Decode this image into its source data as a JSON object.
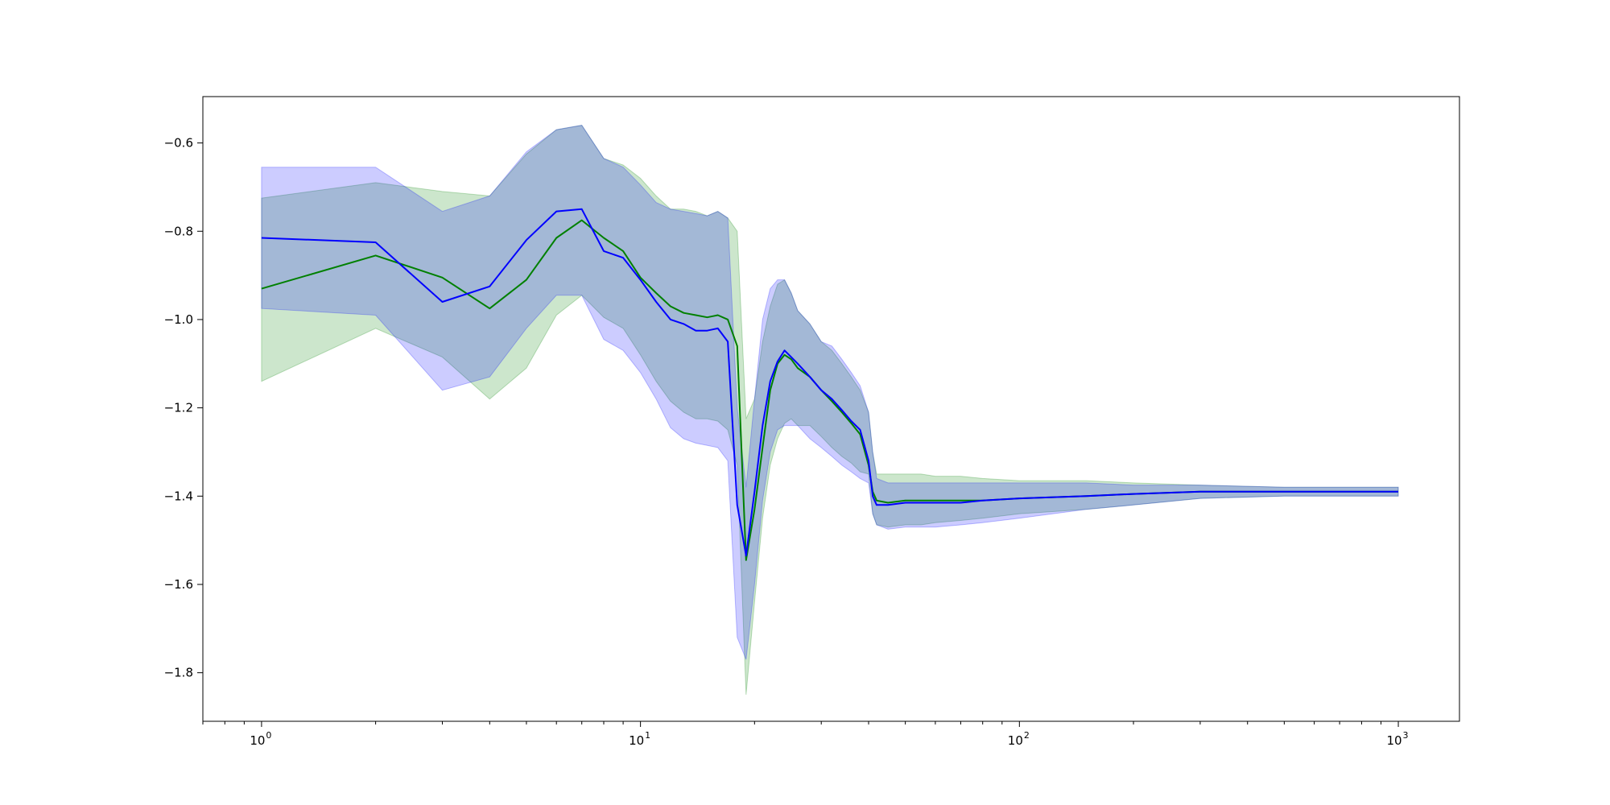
{
  "chart_data": {
    "type": "line",
    "title": "",
    "xlabel": "",
    "ylabel": "",
    "x_scale": "log",
    "xlim": [
      0.7,
      1450
    ],
    "ylim": [
      -1.91,
      -0.495
    ],
    "grid": false,
    "legend": "none",
    "x_ticks": [
      {
        "value": 1,
        "base": "10",
        "exp": "0"
      },
      {
        "value": 10,
        "base": "10",
        "exp": "1"
      },
      {
        "value": 100,
        "base": "10",
        "exp": "2"
      },
      {
        "value": 1000,
        "base": "10",
        "exp": "3"
      }
    ],
    "y_ticks": [
      {
        "value": -0.6,
        "label": "−0.6"
      },
      {
        "value": -0.8,
        "label": "−0.8"
      },
      {
        "value": -1.0,
        "label": "−1.0"
      },
      {
        "value": -1.2,
        "label": "−1.2"
      },
      {
        "value": -1.4,
        "label": "−1.4"
      },
      {
        "value": -1.6,
        "label": "−1.6"
      },
      {
        "value": -1.8,
        "label": "−1.8"
      }
    ],
    "series": [
      {
        "color": "#008000",
        "band_color": "#008000",
        "band_opacity": 0.2,
        "x": [
          1,
          2,
          3,
          4,
          5,
          6,
          7,
          8,
          9,
          10,
          11,
          12,
          13,
          14,
          15,
          16,
          17,
          18,
          19,
          20,
          21,
          22,
          23,
          24,
          25,
          26,
          28,
          30,
          32,
          34,
          36,
          38,
          40,
          41,
          42,
          45,
          50,
          55,
          60,
          70,
          80,
          100,
          150,
          200,
          300,
          500,
          1000
        ],
        "y": [
          -0.93,
          -0.855,
          -0.905,
          -0.975,
          -0.91,
          -0.815,
          -0.775,
          -0.815,
          -0.845,
          -0.905,
          -0.94,
          -0.97,
          -0.985,
          -0.99,
          -0.995,
          -0.99,
          -1.0,
          -1.06,
          -1.545,
          -1.43,
          -1.29,
          -1.16,
          -1.1,
          -1.08,
          -1.09,
          -1.11,
          -1.13,
          -1.16,
          -1.185,
          -1.21,
          -1.235,
          -1.26,
          -1.33,
          -1.39,
          -1.41,
          -1.415,
          -1.41,
          -1.41,
          -1.41,
          -1.41,
          -1.41,
          -1.405,
          -1.4,
          -1.395,
          -1.39,
          -1.39,
          -1.39
        ],
        "upper": [
          -0.725,
          -0.69,
          -0.71,
          -0.72,
          -0.625,
          -0.57,
          -0.56,
          -0.635,
          -0.65,
          -0.68,
          -0.72,
          -0.75,
          -0.75,
          -0.755,
          -0.765,
          -0.755,
          -0.77,
          -0.8,
          -1.225,
          -1.18,
          -1.05,
          -0.97,
          -0.92,
          -0.91,
          -0.94,
          -0.98,
          -1.01,
          -1.05,
          -1.07,
          -1.1,
          -1.13,
          -1.16,
          -1.21,
          -1.3,
          -1.35,
          -1.35,
          -1.35,
          -1.35,
          -1.355,
          -1.355,
          -1.36,
          -1.365,
          -1.365,
          -1.37,
          -1.375,
          -1.38,
          -1.38
        ],
        "lower": [
          -1.14,
          -1.02,
          -1.085,
          -1.18,
          -1.11,
          -0.99,
          -0.945,
          -0.995,
          -1.02,
          -1.08,
          -1.14,
          -1.185,
          -1.21,
          -1.225,
          -1.225,
          -1.23,
          -1.25,
          -1.33,
          -1.85,
          -1.64,
          -1.45,
          -1.33,
          -1.27,
          -1.235,
          -1.225,
          -1.24,
          -1.24,
          -1.265,
          -1.29,
          -1.31,
          -1.325,
          -1.345,
          -1.35,
          -1.44,
          -1.465,
          -1.47,
          -1.465,
          -1.465,
          -1.46,
          -1.455,
          -1.45,
          -1.44,
          -1.43,
          -1.42,
          -1.405,
          -1.4,
          -1.4
        ]
      },
      {
        "color": "#0000ff",
        "band_color": "#0000ff",
        "band_opacity": 0.2,
        "x": [
          1,
          2,
          3,
          4,
          5,
          6,
          7,
          8,
          9,
          10,
          11,
          12,
          13,
          14,
          15,
          16,
          17,
          18,
          19,
          20,
          21,
          22,
          23,
          24,
          25,
          26,
          28,
          30,
          32,
          34,
          36,
          38,
          40,
          41,
          42,
          45,
          50,
          55,
          60,
          70,
          80,
          100,
          150,
          200,
          300,
          500,
          1000
        ],
        "y": [
          -0.815,
          -0.825,
          -0.96,
          -0.925,
          -0.82,
          -0.755,
          -0.75,
          -0.845,
          -0.86,
          -0.91,
          -0.96,
          -1.0,
          -1.01,
          -1.025,
          -1.025,
          -1.02,
          -1.05,
          -1.42,
          -1.535,
          -1.39,
          -1.24,
          -1.14,
          -1.095,
          -1.07,
          -1.085,
          -1.1,
          -1.13,
          -1.16,
          -1.18,
          -1.205,
          -1.23,
          -1.25,
          -1.32,
          -1.4,
          -1.42,
          -1.42,
          -1.415,
          -1.415,
          -1.415,
          -1.415,
          -1.41,
          -1.405,
          -1.4,
          -1.395,
          -1.39,
          -1.39,
          -1.39
        ],
        "upper": [
          -0.655,
          -0.655,
          -0.755,
          -0.72,
          -0.62,
          -0.57,
          -0.56,
          -0.635,
          -0.655,
          -0.695,
          -0.735,
          -0.75,
          -0.755,
          -0.76,
          -0.765,
          -0.755,
          -0.77,
          -1.2,
          -1.38,
          -1.18,
          -1.0,
          -0.93,
          -0.91,
          -0.91,
          -0.94,
          -0.98,
          -1.01,
          -1.05,
          -1.06,
          -1.09,
          -1.12,
          -1.15,
          -1.21,
          -1.3,
          -1.36,
          -1.37,
          -1.37,
          -1.37,
          -1.37,
          -1.37,
          -1.37,
          -1.37,
          -1.37,
          -1.375,
          -1.375,
          -1.38,
          -1.38
        ],
        "lower": [
          -0.975,
          -0.99,
          -1.16,
          -1.13,
          -1.02,
          -0.945,
          -0.945,
          -1.045,
          -1.07,
          -1.12,
          -1.18,
          -1.245,
          -1.27,
          -1.28,
          -1.285,
          -1.29,
          -1.32,
          -1.72,
          -1.77,
          -1.6,
          -1.41,
          -1.3,
          -1.25,
          -1.24,
          -1.24,
          -1.24,
          -1.27,
          -1.29,
          -1.31,
          -1.33,
          -1.345,
          -1.36,
          -1.37,
          -1.44,
          -1.465,
          -1.475,
          -1.47,
          -1.47,
          -1.47,
          -1.465,
          -1.46,
          -1.45,
          -1.43,
          -1.42,
          -1.405,
          -1.4,
          -1.4
        ]
      }
    ]
  }
}
